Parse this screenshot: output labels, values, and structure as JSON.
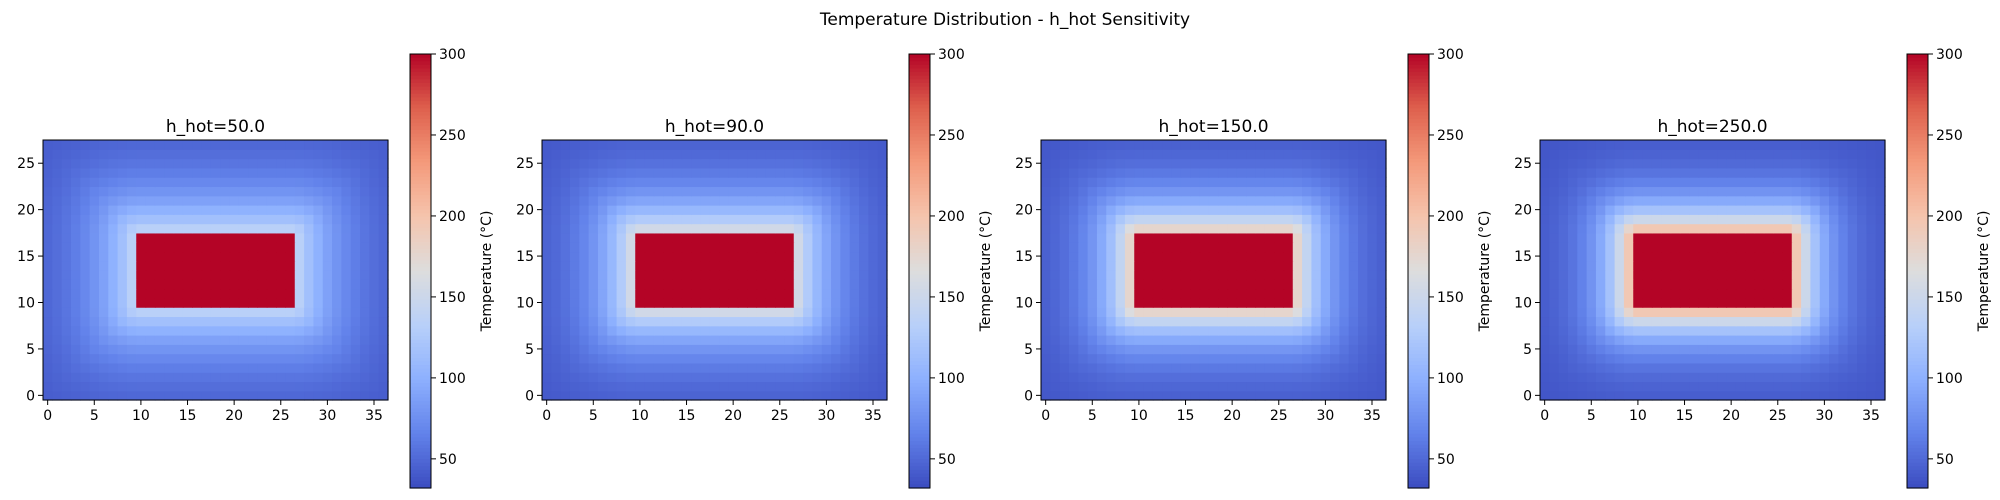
{
  "figure": {
    "title": "Temperature Distribution - h_hot Sensitivity"
  },
  "chart_data": [
    {
      "type": "heatmap",
      "title": "h_hot=50.0",
      "h_hot": 50.0,
      "grid": {
        "nx": 37,
        "ny": 28
      },
      "hot_block": {
        "x": [
          10,
          26
        ],
        "y": [
          10,
          17
        ],
        "value": 300
      },
      "boundary_min": 36,
      "halo_peak": 150,
      "halo_decay": 6.5,
      "x_ticks": [
        0,
        5,
        10,
        15,
        20,
        25,
        30,
        35
      ],
      "y_ticks": [
        0,
        5,
        10,
        15,
        20,
        25
      ],
      "xlim": [
        -0.5,
        36.5
      ],
      "ylim": [
        -0.5,
        27.5
      ],
      "colorbar": {
        "label": "Temperature (°C)",
        "min": 32,
        "max": 300,
        "ticks": [
          50,
          100,
          150,
          200,
          250,
          300
        ]
      }
    },
    {
      "type": "heatmap",
      "title": "h_hot=90.0",
      "h_hot": 90.0,
      "grid": {
        "nx": 37,
        "ny": 28
      },
      "hot_block": {
        "x": [
          10,
          26
        ],
        "y": [
          10,
          17
        ],
        "value": 300
      },
      "boundary_min": 36,
      "halo_peak": 180,
      "halo_decay": 5.0,
      "x_ticks": [
        0,
        5,
        10,
        15,
        20,
        25,
        30,
        35
      ],
      "y_ticks": [
        0,
        5,
        10,
        15,
        20,
        25
      ],
      "xlim": [
        -0.5,
        36.5
      ],
      "ylim": [
        -0.5,
        27.5
      ],
      "colorbar": {
        "label": "Temperature (°C)",
        "min": 32,
        "max": 300,
        "ticks": [
          50,
          100,
          150,
          200,
          250,
          300
        ]
      }
    },
    {
      "type": "heatmap",
      "title": "h_hot=150.0",
      "h_hot": 150.0,
      "grid": {
        "nx": 37,
        "ny": 28
      },
      "hot_block": {
        "x": [
          10,
          26
        ],
        "y": [
          10,
          17
        ],
        "value": 300
      },
      "boundary_min": 36,
      "halo_peak": 215,
      "halo_decay": 4.2,
      "x_ticks": [
        0,
        5,
        10,
        15,
        20,
        25,
        30,
        35
      ],
      "y_ticks": [
        0,
        5,
        10,
        15,
        20,
        25
      ],
      "xlim": [
        -0.5,
        36.5
      ],
      "ylim": [
        -0.5,
        27.5
      ],
      "colorbar": {
        "label": "Temperature (°C)",
        "min": 32,
        "max": 300,
        "ticks": [
          50,
          100,
          150,
          200,
          250,
          300
        ]
      }
    },
    {
      "type": "heatmap",
      "title": "h_hot=250.0",
      "h_hot": 250.0,
      "grid": {
        "nx": 37,
        "ny": 28
      },
      "hot_block": {
        "x": [
          10,
          26
        ],
        "y": [
          10,
          17
        ],
        "value": 300
      },
      "boundary_min": 36,
      "halo_peak": 245,
      "halo_decay": 3.6,
      "x_ticks": [
        0,
        5,
        10,
        15,
        20,
        25,
        30,
        35
      ],
      "y_ticks": [
        0,
        5,
        10,
        15,
        20,
        25
      ],
      "xlim": [
        -0.5,
        36.5
      ],
      "ylim": [
        -0.5,
        27.5
      ],
      "colorbar": {
        "label": "Temperature (°C)",
        "min": 32,
        "max": 300,
        "ticks": [
          50,
          100,
          150,
          200,
          250,
          300
        ]
      }
    }
  ]
}
